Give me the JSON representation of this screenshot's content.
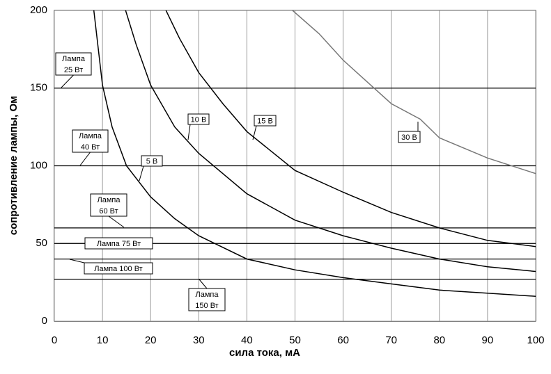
{
  "chart_data": {
    "type": "line",
    "xlabel": "сила тока, мА",
    "ylabel": "сопротивление лампы, Ом",
    "xlim": [
      0,
      100
    ],
    "xticks": [
      0,
      10,
      20,
      30,
      40,
      50,
      60,
      70,
      80,
      90,
      100
    ],
    "ylim": [
      0,
      200
    ],
    "yticks": [
      0,
      50,
      100,
      150,
      200
    ],
    "grid": true,
    "series": [
      {
        "name": "5 В",
        "color": "#000000",
        "x": [
          8.2,
          10,
          12,
          15,
          20,
          25,
          30,
          40,
          50,
          60,
          70,
          80,
          90,
          100
        ],
        "values": [
          200,
          152,
          125,
          100,
          80,
          66,
          55,
          40,
          33,
          28,
          24,
          20,
          18,
          16
        ]
      },
      {
        "name": "10 В",
        "color": "#000000",
        "x": [
          14.8,
          17,
          20,
          25,
          30,
          40,
          50,
          60,
          70,
          80,
          90,
          100
        ],
        "values": [
          200,
          178,
          152,
          125,
          108,
          82,
          65,
          55,
          47,
          40,
          35,
          32
        ]
      },
      {
        "name": "15 В",
        "color": "#000000",
        "x": [
          23.2,
          26,
          30,
          35,
          40,
          50,
          60,
          70,
          80,
          90,
          100
        ],
        "values": [
          200,
          182,
          160,
          140,
          122,
          97,
          83,
          70,
          60,
          52,
          48
        ]
      },
      {
        "name": "30 В",
        "color": "#777777",
        "x": [
          49.5,
          55,
          60,
          70,
          76,
          80,
          90,
          100
        ],
        "values": [
          200,
          185,
          168,
          140,
          130,
          118,
          105,
          95
        ]
      }
    ],
    "reference_lines": [
      {
        "lines": [
          "Лампа",
          "25 Вт"
        ],
        "value": 150
      },
      {
        "lines": [
          "Лампа",
          "40 Вт"
        ],
        "value": 100
      },
      {
        "lines": [
          "Лампа",
          "60 Вт"
        ],
        "value": 60
      },
      {
        "lines": [
          "Лампа 75 Вт"
        ],
        "value": 50
      },
      {
        "lines": [
          "Лампа 100 Вт"
        ],
        "value": 40
      },
      {
        "lines": [
          "Лампа",
          "150 Вт"
        ],
        "value": 27
      }
    ]
  }
}
